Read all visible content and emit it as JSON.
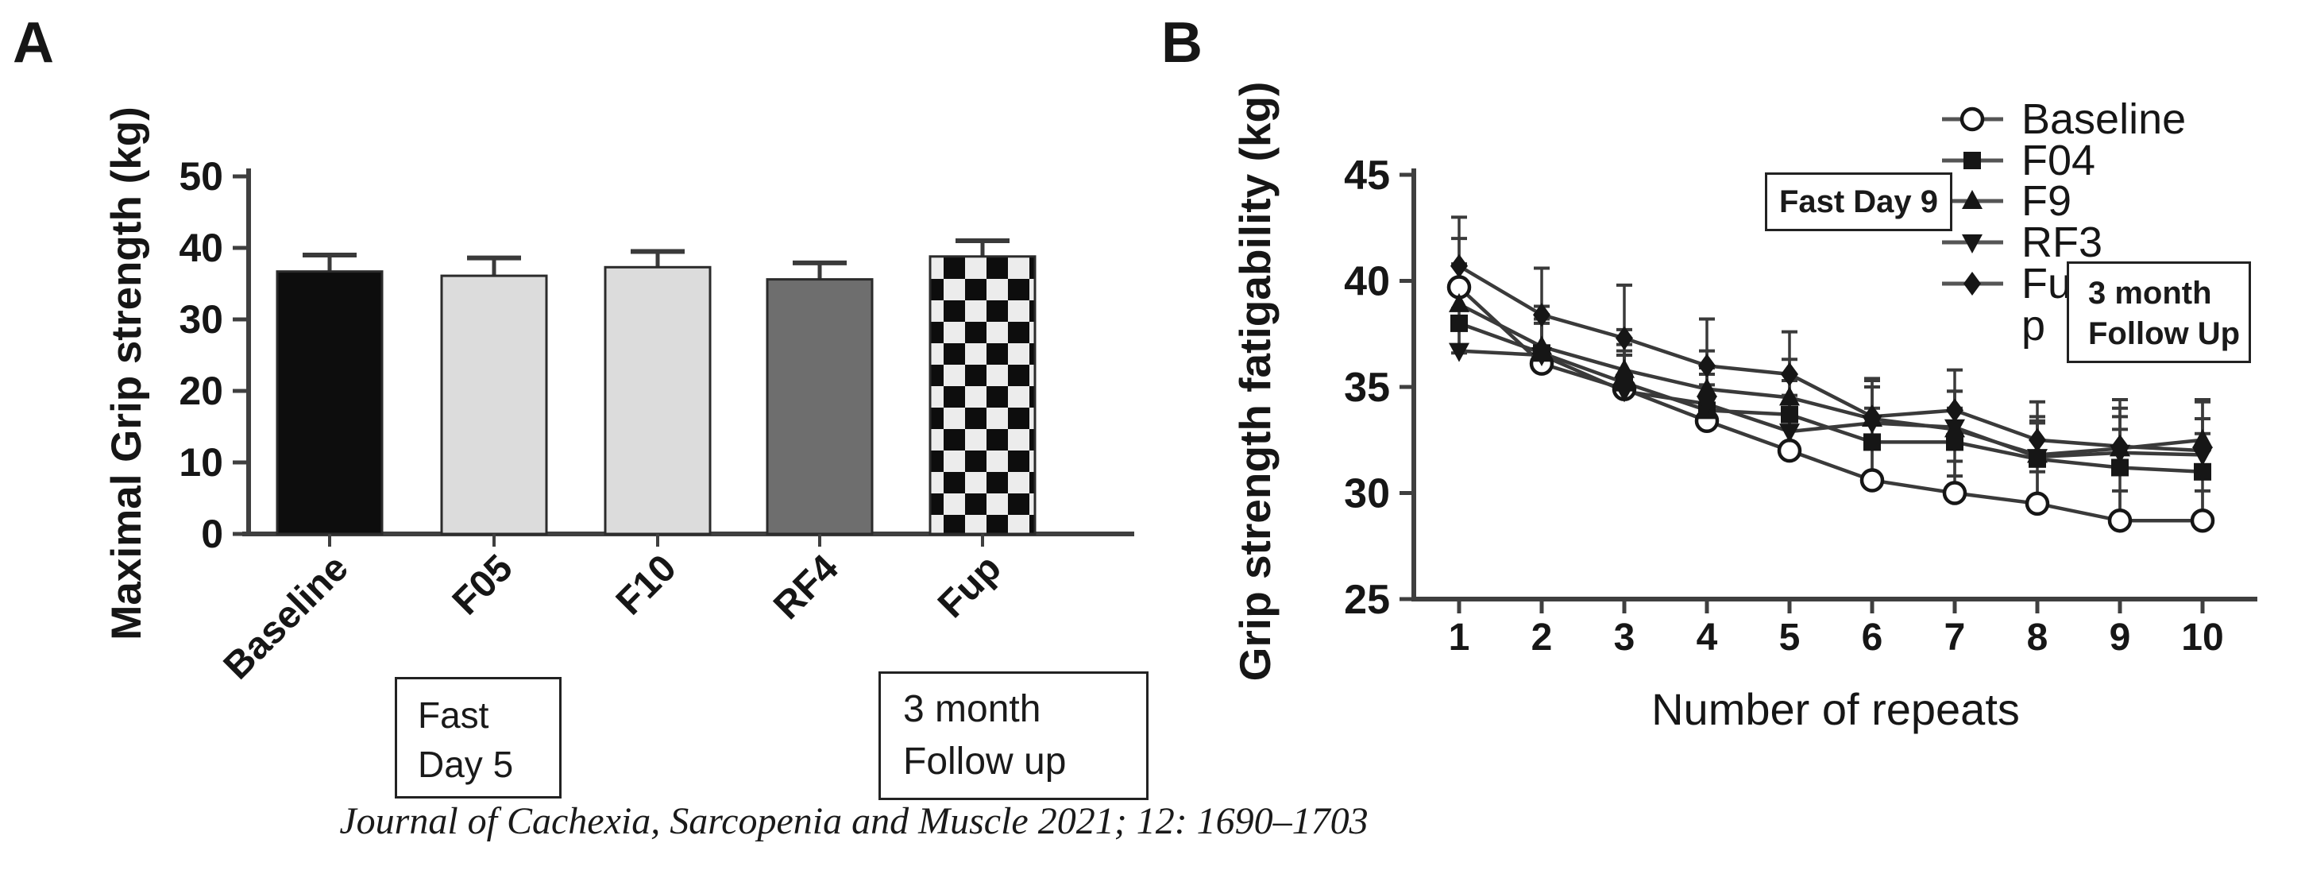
{
  "figure": {
    "panel_a_letter": "A",
    "panel_b_letter": "B",
    "citation": "Journal of Cachexia, Sarcopenia and Muscle 2021; 12: 1690–1703"
  },
  "annotations": {
    "panel_a_fast": {
      "line1": "Fast",
      "line2": "Day 5"
    },
    "panel_a_followup": {
      "line1": "3 month",
      "line2": "Follow up"
    },
    "panel_b_fast": {
      "text": "Fast Day 9"
    },
    "panel_b_followup": {
      "line1": "3 month",
      "line2": "Follow Up"
    }
  },
  "colors": {
    "ink": "#161616",
    "axis": "#3f3f3f",
    "series_line": "#3a3a3a",
    "bar_black": "#0d0d0d",
    "bar_light_gray": "#dcdcdc",
    "bar_dark_gray": "#6e6e6e",
    "checker_light": "#ececec",
    "checker_dark": "#0d0d0d"
  },
  "chart_data": [
    {
      "panel": "A",
      "type": "bar",
      "title": "",
      "xlabel": "",
      "ylabel": "Maximal Grip strength (kg)",
      "ylabel_lines": [
        "Maximal Grip strength",
        "(kg)"
      ],
      "categories": [
        "Baseline",
        "F05",
        "F10",
        "RF4",
        "Fup"
      ],
      "values": [
        36.7,
        36.1,
        37.3,
        35.6,
        38.8
      ],
      "errors_up": [
        2.3,
        2.5,
        2.2,
        2.3,
        2.2
      ],
      "bar_styles": [
        "solid-black",
        "light-gray",
        "light-gray",
        "dark-gray",
        "checkerboard"
      ],
      "ylim": [
        0,
        50
      ],
      "y_ticks": [
        0,
        10,
        20,
        30,
        40,
        50
      ],
      "grid": "off"
    },
    {
      "panel": "B",
      "type": "line",
      "title": "",
      "xlabel": "Number of repeats",
      "ylabel": "Grip strength fatigability (kg)",
      "ylabel_lines": [
        "Grip strength fatigability",
        "(kg)"
      ],
      "x": [
        1,
        2,
        3,
        4,
        5,
        6,
        7,
        8,
        9,
        10
      ],
      "ylim": [
        25,
        45
      ],
      "y_ticks": [
        25,
        30,
        35,
        40,
        45
      ],
      "grid": "off",
      "legend_position": "top-right",
      "series": [
        {
          "name": "Baseline",
          "marker": "open-circle",
          "legend_lines": [
            "Baseline"
          ],
          "values": [
            39.7,
            36.1,
            34.9,
            33.4,
            32.0,
            30.6,
            30.0,
            29.5,
            28.7,
            28.7
          ],
          "err_up": [
            2.3,
            1.9,
            1.8,
            1.7,
            1.6,
            1.5,
            1.5,
            1.5,
            1.4,
            1.4
          ],
          "err_down": [
            1.0,
            0,
            0,
            0,
            0,
            0,
            0,
            0,
            0,
            0
          ]
        },
        {
          "name": "F04",
          "marker": "filled-square",
          "legend_lines": [
            "F04"
          ],
          "values": [
            38.0,
            36.6,
            35.2,
            33.9,
            33.7,
            32.4,
            32.4,
            31.6,
            31.2,
            31.0
          ],
          "err_up": [
            1.6,
            1.8,
            1.8,
            1.7,
            1.6,
            1.6,
            1.6,
            1.7,
            1.8,
            1.8
          ],
          "err_down": [
            1.4,
            0,
            0,
            0,
            1.6,
            1.6,
            1.6,
            2.0,
            2.4,
            2.3
          ]
        },
        {
          "name": "F9",
          "marker": "filled-triangle-up",
          "legend_lines": [
            "F9"
          ],
          "values": [
            38.9,
            36.9,
            35.8,
            34.9,
            34.5,
            33.5,
            33.0,
            31.8,
            32.1,
            32.5
          ],
          "err_up": [
            1.9,
            1.9,
            1.9,
            1.8,
            1.8,
            1.8,
            1.8,
            1.8,
            1.9,
            1.9
          ],
          "err_down": [
            0,
            0,
            0,
            0,
            0,
            0,
            0,
            0,
            0,
            0
          ]
        },
        {
          "name": "RF3",
          "marker": "filled-triangle-down",
          "legend_lines": [
            "RF3"
          ],
          "values": [
            36.7,
            36.5,
            34.8,
            34.2,
            32.9,
            33.3,
            33.1,
            31.7,
            31.9,
            31.8
          ],
          "err_up": [
            1.6,
            1.7,
            1.7,
            1.7,
            1.7,
            1.7,
            1.7,
            1.7,
            1.7,
            1.7
          ],
          "err_down": [
            0,
            0,
            0,
            0,
            0,
            0,
            0,
            0,
            0,
            0
          ]
        },
        {
          "name": "Fup",
          "marker": "filled-diamond",
          "legend_lines": [
            "Fu",
            "p"
          ],
          "values": [
            40.7,
            38.4,
            37.3,
            36.0,
            35.6,
            33.6,
            33.9,
            32.5,
            32.2,
            32.0
          ],
          "err_up": [
            2.3,
            2.2,
            2.5,
            2.2,
            2.0,
            1.8,
            1.9,
            1.8,
            2.2,
            2.3
          ],
          "err_down": [
            0,
            0,
            0,
            0,
            0,
            0,
            0,
            0,
            0,
            0
          ]
        }
      ]
    }
  ]
}
